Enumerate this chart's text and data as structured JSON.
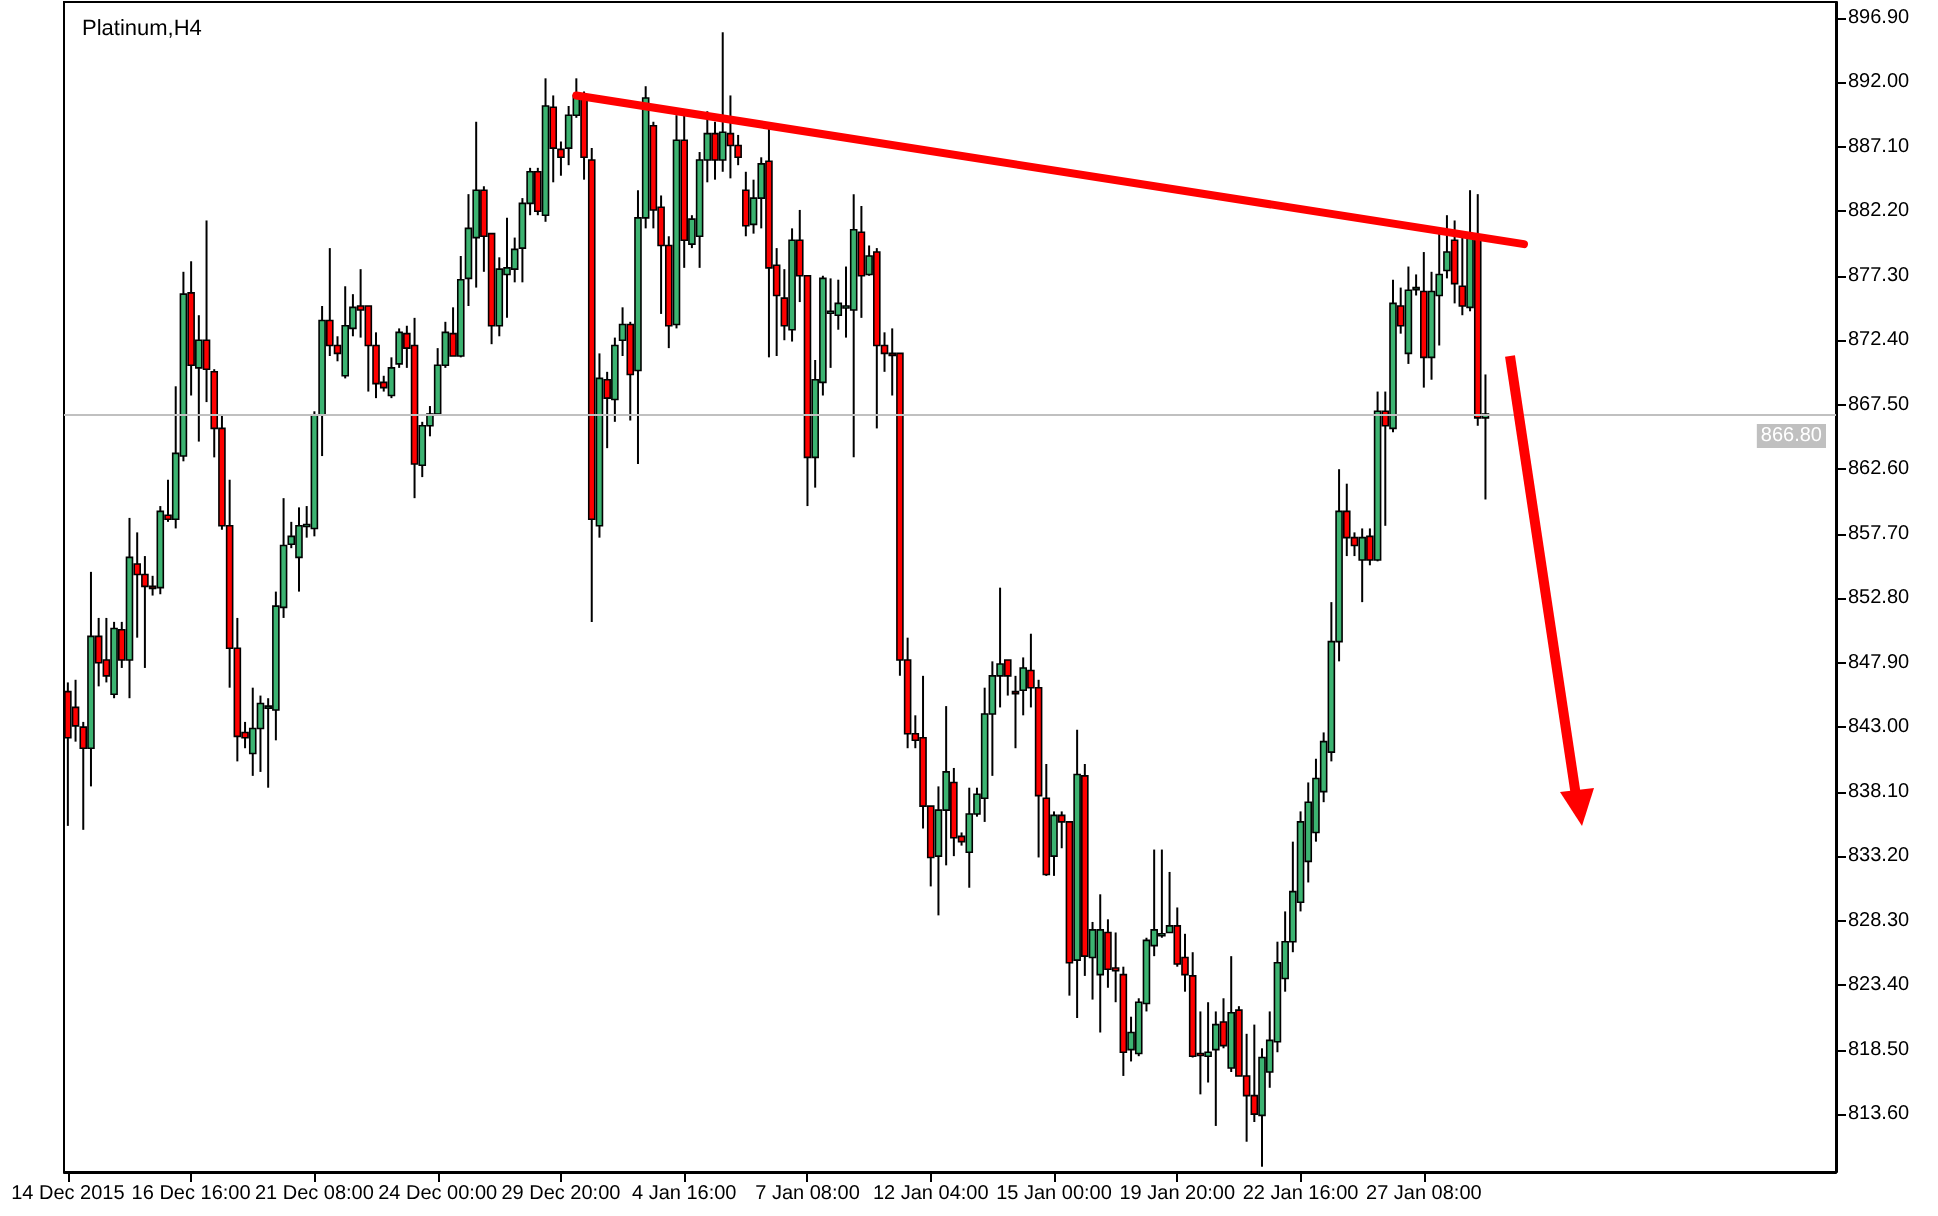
{
  "chart_data": {
    "type": "candlestick",
    "title": "Platinum,H4",
    "categories": [
      "14 Dec 2015",
      null,
      null,
      null,
      null,
      null,
      null,
      null,
      null,
      null,
      null,
      null,
      null,
      null,
      null,
      null,
      "16 Dec 16:00",
      null,
      null,
      null,
      null,
      null,
      null,
      null,
      null,
      null,
      null,
      null,
      null,
      null,
      null,
      null,
      "21 Dec 08:00",
      null,
      null,
      null,
      null,
      null,
      null,
      null,
      null,
      null,
      null,
      null,
      null,
      null,
      null,
      null,
      "24 Dec 00:00",
      null,
      null,
      null,
      null,
      null,
      null,
      null,
      null,
      null,
      null,
      null,
      null,
      null,
      null,
      null,
      "29 Dec 20:00",
      null,
      null,
      null,
      null,
      null,
      null,
      null,
      null,
      null,
      null,
      null,
      null,
      null,
      null,
      null,
      "4 Jan 16:00",
      null,
      null,
      null,
      null,
      null,
      null,
      null,
      null,
      null,
      null,
      null,
      null,
      null,
      null,
      null,
      "7 Jan 08:00",
      null,
      null,
      null,
      null,
      null,
      null,
      null,
      null,
      null,
      null,
      null,
      null,
      null,
      null,
      null,
      "12 Jan 04:00",
      null,
      null,
      null,
      null,
      null,
      null,
      null,
      null,
      null,
      null,
      null,
      null,
      null,
      null,
      null,
      "15 Jan 00:00",
      null,
      null,
      null,
      null,
      null,
      null,
      null,
      null,
      null,
      null,
      null,
      null,
      null,
      null,
      null,
      "19 Jan 20:00",
      null,
      null,
      null,
      null,
      null,
      null,
      null,
      null,
      null,
      null,
      null,
      null,
      null,
      null,
      null,
      "22 Jan 16:00",
      null,
      null,
      null,
      null,
      null,
      null,
      null,
      null,
      null,
      null,
      null,
      null,
      null,
      null,
      null,
      "27 Jan 08:00",
      null,
      null,
      null,
      null,
      null,
      null,
      null,
      null,
      null,
      null,
      null,
      null,
      null,
      null,
      null,
      null,
      null,
      null,
      null,
      null,
      null,
      null,
      null,
      null,
      null,
      null,
      null,
      null,
      null,
      null,
      null,
      null,
      null,
      null,
      null,
      null,
      null,
      null,
      null,
      null,
      null,
      null,
      null,
      null,
      null,
      null,
      null,
      null,
      null,
      null,
      null,
      null,
      null
    ],
    "colors": [
      "#ff0000",
      "#ff0000",
      "#ff0000",
      "#3cb371",
      "#ff0000",
      "#ff0000",
      "#3cb371",
      "#ff0000",
      "#3cb371",
      "#ff0000",
      "#ff0000",
      "#ff0000",
      "#3cb371",
      "#ff0000",
      "#3cb371",
      "#3cb371",
      "#ff0000",
      "#3cb371",
      "#ff0000",
      "#ff0000",
      "#ff0000",
      "#ff0000",
      "#ff0000",
      "#ff0000",
      "#3cb371",
      "#3cb371",
      "#3cb371",
      "#3cb371",
      "#3cb371",
      "#3cb371",
      "#3cb371",
      "#3cb371",
      "#3cb371",
      "#3cb371",
      "#ff0000",
      "#ff0000",
      "#3cb371",
      "#3cb371",
      "#ff0000",
      "#ff0000",
      "#ff0000",
      "#ff0000",
      "#3cb371",
      "#3cb371",
      "#ff0000",
      "#ff0000",
      "#3cb371",
      "#3cb371",
      "#3cb371",
      "#3cb371",
      "#ff0000",
      "#3cb371",
      "#3cb371",
      "#3cb371",
      "#ff0000",
      "#ff0000",
      "#3cb371",
      "#3cb371",
      "#3cb371",
      "#3cb371",
      "#3cb371",
      "#ff0000",
      "#3cb371",
      "#ff0000",
      "#ff0000",
      "#3cb371",
      "#3cb371",
      "#ff0000",
      "#ff0000",
      "#3cb371",
      "#ff0000",
      "#3cb371",
      "#3cb371",
      "#ff0000",
      "#3cb371",
      "#3cb371",
      "#ff0000",
      "#ff0000",
      "#ff0000",
      "#3cb371",
      "#ff0000",
      "#3cb371",
      "#3cb371",
      "#3cb371",
      "#ff0000",
      "#3cb371",
      "#ff0000",
      "#ff0000",
      "#ff0000",
      "#3cb371",
      "#3cb371",
      "#ff0000",
      "#ff0000",
      "#ff0000",
      "#3cb371",
      "#ff0000",
      "#ff0000",
      "#3cb371",
      "#3cb371",
      "#3cb371",
      "#3cb371",
      "#3cb371",
      "#3cb371",
      "#ff0000",
      "#3cb371",
      "#ff0000",
      "#ff0000",
      "#ff0000",
      "#ff0000",
      "#ff0000",
      "#ff0000",
      "#ff0000",
      "#ff0000",
      "#3cb371",
      "#3cb371",
      "#ff0000",
      "#ff0000",
      "#3cb371",
      "#3cb371",
      "#3cb371",
      "#3cb371",
      "#3cb371",
      "#ff0000",
      "#ff0000",
      "#3cb371",
      "#ff0000",
      "#ff0000",
      "#ff0000",
      "#3cb371",
      "#ff0000",
      "#ff0000",
      "#3cb371",
      "#ff0000",
      "#3cb371",
      "#3cb371",
      "#ff0000",
      "#ff0000",
      "#ff0000",
      "#3cb371",
      "#3cb371",
      "#3cb371",
      "#3cb371",
      "#3cb371",
      "#3cb371",
      "#ff0000",
      "#ff0000",
      "#ff0000",
      "#ff0000",
      "#3cb371",
      "#3cb371",
      "#ff0000",
      "#3cb371",
      "#ff0000",
      "#ff0000",
      "#ff0000",
      "#3cb371",
      "#3cb371",
      "#3cb371",
      "#3cb371",
      "#3cb371",
      "#3cb371",
      "#3cb371",
      "#3cb371",
      "#3cb371",
      "#3cb371",
      "#3cb371",
      "#ff0000",
      "#ff0000",
      "#3cb371",
      "#ff0000",
      "#3cb371",
      "#ff0000",
      "#3cb371",
      "#ff0000",
      "#3cb371",
      "#3cb371",
      "#ff0000",
      "#3cb371",
      "#3cb371",
      "#3cb371",
      "#ff0000",
      "#ff0000",
      "#3cb371",
      "#ff0000",
      "#3cb371",
      null,
      null,
      null,
      null,
      null,
      null,
      null,
      null,
      null,
      null,
      null,
      null,
      null,
      null,
      null,
      null,
      null,
      null,
      null,
      null,
      null,
      null,
      null,
      null,
      null,
      null,
      null,
      null,
      null,
      null,
      null,
      null,
      null,
      null,
      null,
      null,
      null,
      null,
      null,
      null,
      null,
      null,
      null,
      null,
      null
    ],
    "ylim": [
      809.2,
      898.1
    ],
    "yticks": [
      {
        "value": 813.6,
        "label": "813.60"
      },
      {
        "value": 818.5,
        "label": "818.50"
      },
      {
        "value": 823.4,
        "label": "823.40"
      },
      {
        "value": 828.3,
        "label": "828.30"
      },
      {
        "value": 833.2,
        "label": "833.20"
      },
      {
        "value": 838.1,
        "label": "838.10"
      },
      {
        "value": 843.0,
        "label": "843.00"
      },
      {
        "value": 847.9,
        "label": "847.90"
      },
      {
        "value": 852.8,
        "label": "852.80"
      },
      {
        "value": 857.7,
        "label": "857.70"
      },
      {
        "value": 862.6,
        "label": "862.60"
      },
      {
        "value": 867.5,
        "label": "867.50"
      },
      {
        "value": 872.4,
        "label": "872.40"
      },
      {
        "value": 877.3,
        "label": "877.30"
      },
      {
        "value": 882.2,
        "label": "882.20"
      },
      {
        "value": 887.1,
        "label": "887.10"
      },
      {
        "value": 892.0,
        "label": "892.00"
      },
      {
        "value": 896.9,
        "label": "896.90"
      }
    ],
    "ref_lines": [
      {
        "axis": "y",
        "value": 866.8,
        "label": "866.80",
        "color": "#c0c0c0"
      }
    ],
    "ohlc": [
      [
        845.7,
        846.4,
        835.5,
        842.2
      ],
      [
        844.5,
        846.6,
        841.9,
        843.1
      ],
      [
        843.0,
        843.4,
        835.2,
        841.4
      ],
      [
        841.4,
        854.8,
        838.5,
        849.9
      ],
      [
        849.9,
        851.3,
        846.1,
        847.9
      ],
      [
        848.1,
        851.3,
        846.4,
        846.9
      ],
      [
        845.5,
        851.0,
        845.2,
        850.5
      ],
      [
        850.4,
        851.0,
        847.5,
        848.1
      ],
      [
        848.1,
        858.9,
        845.2,
        855.9
      ],
      [
        855.4,
        857.8,
        849.8,
        854.6
      ],
      [
        854.6,
        856.0,
        847.5,
        853.7
      ],
      [
        853.7,
        854.5,
        853.0,
        853.6
      ],
      [
        853.6,
        859.8,
        853.1,
        859.4
      ],
      [
        859.1,
        861.8,
        858.6,
        858.8
      ],
      [
        858.8,
        868.9,
        858.1,
        863.8
      ],
      [
        863.6,
        877.6,
        863.2,
        875.9
      ],
      [
        876.0,
        878.4,
        868.2,
        870.5
      ],
      [
        870.3,
        874.3,
        864.7,
        872.4
      ],
      [
        872.4,
        881.5,
        867.7,
        870.2
      ],
      [
        870.0,
        870.2,
        863.5,
        865.7
      ],
      [
        865.7,
        866.7,
        858.0,
        858.3
      ],
      [
        858.3,
        861.8,
        846.0,
        849.0
      ],
      [
        849.0,
        851.3,
        840.4,
        842.3
      ],
      [
        842.6,
        843.4,
        841.4,
        842.2
      ],
      [
        841.0,
        846.0,
        839.3,
        842.9
      ],
      [
        842.9,
        845.4,
        839.6,
        844.8
      ],
      [
        844.5,
        845.2,
        838.4,
        844.6
      ],
      [
        844.3,
        853.3,
        842.0,
        852.2
      ],
      [
        852.1,
        860.4,
        851.3,
        856.8
      ],
      [
        856.9,
        858.6,
        856.6,
        857.5
      ],
      [
        855.9,
        859.7,
        853.3,
        858.3
      ],
      [
        858.3,
        859.8,
        857.4,
        858.4
      ],
      [
        858.1,
        867.0,
        857.5,
        866.7
      ],
      [
        866.7,
        875.0,
        863.6,
        873.9
      ],
      [
        873.9,
        879.4,
        871.2,
        872.0
      ],
      [
        872.0,
        872.7,
        870.8,
        871.4
      ],
      [
        869.7,
        876.5,
        869.5,
        873.5
      ],
      [
        873.3,
        875.9,
        872.7,
        874.9
      ],
      [
        875.0,
        877.8,
        872.6,
        874.7
      ],
      [
        875.0,
        875.0,
        868.5,
        872.0
      ],
      [
        872.0,
        873.0,
        868.0,
        869.1
      ],
      [
        869.2,
        869.7,
        868.5,
        868.8
      ],
      [
        868.2,
        871.1,
        868.0,
        870.3
      ],
      [
        870.6,
        873.3,
        870.3,
        873.0
      ],
      [
        872.9,
        873.5,
        870.3,
        871.8
      ],
      [
        872.0,
        874.1,
        860.4,
        863.0
      ],
      [
        862.9,
        866.2,
        862.0,
        865.9
      ],
      [
        865.9,
        867.4,
        865.1,
        866.8
      ],
      [
        866.8,
        871.8,
        866.7,
        870.5
      ],
      [
        870.5,
        873.8,
        870.3,
        873.0
      ],
      [
        872.9,
        874.9,
        871.2,
        871.2
      ],
      [
        871.2,
        878.8,
        871.1,
        877.0
      ],
      [
        877.1,
        883.5,
        875.0,
        880.9
      ],
      [
        880.2,
        889.0,
        876.4,
        883.8
      ],
      [
        883.8,
        884.1,
        877.6,
        880.3
      ],
      [
        880.5,
        880.5,
        872.1,
        873.5
      ],
      [
        873.5,
        878.7,
        872.7,
        877.8
      ],
      [
        877.4,
        881.7,
        874.1,
        877.9
      ],
      [
        877.8,
        880.2,
        876.8,
        879.3
      ],
      [
        879.4,
        883.2,
        876.8,
        882.8
      ],
      [
        882.8,
        885.5,
        881.9,
        885.2
      ],
      [
        885.2,
        885.5,
        881.9,
        882.2
      ],
      [
        881.9,
        892.3,
        881.4,
        890.2
      ],
      [
        890.1,
        891.0,
        884.4,
        887.0
      ],
      [
        886.9,
        887.5,
        884.9,
        886.3
      ],
      [
        887.0,
        890.2,
        885.7,
        889.5
      ],
      [
        889.5,
        892.3,
        889.3,
        891.0
      ],
      [
        891.0,
        891.3,
        884.6,
        886.3
      ],
      [
        886.1,
        887.0,
        851.0,
        858.8
      ],
      [
        858.3,
        871.4,
        857.4,
        869.5
      ],
      [
        869.4,
        870.0,
        864.2,
        868.0
      ],
      [
        867.9,
        872.6,
        866.2,
        872.0
      ],
      [
        872.4,
        874.9,
        871.2,
        873.6
      ],
      [
        873.6,
        873.8,
        866.3,
        869.8
      ],
      [
        870.1,
        883.8,
        863.0,
        881.7
      ],
      [
        881.7,
        891.7,
        880.9,
        890.8
      ],
      [
        888.7,
        889.0,
        880.9,
        882.3
      ],
      [
        882.5,
        883.4,
        874.4,
        879.6
      ],
      [
        879.6,
        880.3,
        871.8,
        873.5
      ],
      [
        873.6,
        889.5,
        873.3,
        887.6
      ],
      [
        887.6,
        889.5,
        877.9,
        880.0
      ],
      [
        879.7,
        881.9,
        879.4,
        881.6
      ],
      [
        880.3,
        886.7,
        877.9,
        886.1
      ],
      [
        886.1,
        889.8,
        884.4,
        888.1
      ],
      [
        888.1,
        889.0,
        884.6,
        886.1
      ],
      [
        886.1,
        895.8,
        885.2,
        888.2
      ],
      [
        888.1,
        891.0,
        884.7,
        887.2
      ],
      [
        887.2,
        888.0,
        885.7,
        886.3
      ],
      [
        883.8,
        885.2,
        880.3,
        881.1
      ],
      [
        881.2,
        884.6,
        880.5,
        883.2
      ],
      [
        883.2,
        886.3,
        880.9,
        885.8
      ],
      [
        886.0,
        888.5,
        871.1,
        877.9
      ],
      [
        878.1,
        879.4,
        871.2,
        875.8
      ],
      [
        875.6,
        877.8,
        872.4,
        873.5
      ],
      [
        873.2,
        880.9,
        872.3,
        880.0
      ],
      [
        880.0,
        882.3,
        875.3,
        877.3
      ],
      [
        877.3,
        877.3,
        859.8,
        863.5
      ],
      [
        863.5,
        870.9,
        861.2,
        869.4
      ],
      [
        869.2,
        877.3,
        868.2,
        877.1
      ],
      [
        874.5,
        877.1,
        870.3,
        874.6
      ],
      [
        874.3,
        877.0,
        873.2,
        875.2
      ],
      [
        874.9,
        878.0,
        872.6,
        875.0
      ],
      [
        874.7,
        883.5,
        863.5,
        880.8
      ],
      [
        880.6,
        882.6,
        874.1,
        877.3
      ],
      [
        877.4,
        879.6,
        877.3,
        878.8
      ],
      [
        879.1,
        879.4,
        865.7,
        872.0
      ],
      [
        872.0,
        873.0,
        870.0,
        871.4
      ],
      [
        871.4,
        873.3,
        868.2,
        871.3
      ],
      [
        871.4,
        871.4,
        846.9,
        848.1
      ],
      [
        848.1,
        849.8,
        841.4,
        842.5
      ],
      [
        842.5,
        843.9,
        841.4,
        842.0
      ],
      [
        842.2,
        846.9,
        835.3,
        837.0
      ],
      [
        837.0,
        837.0,
        830.9,
        833.1
      ],
      [
        833.2,
        838.5,
        828.7,
        836.7
      ],
      [
        836.7,
        844.6,
        832.5,
        839.6
      ],
      [
        838.8,
        839.9,
        833.2,
        834.6
      ],
      [
        834.7,
        835.0,
        834.0,
        834.3
      ],
      [
        833.5,
        838.4,
        830.8,
        836.4
      ],
      [
        836.4,
        838.4,
        836.2,
        837.9
      ],
      [
        837.6,
        846.0,
        835.8,
        844.0
      ],
      [
        844.0,
        848.0,
        839.3,
        846.9
      ],
      [
        846.9,
        853.6,
        844.5,
        847.8
      ],
      [
        848.1,
        848.1,
        845.4,
        846.9
      ],
      [
        845.7,
        846.9,
        841.4,
        845.6
      ],
      [
        845.8,
        848.3,
        843.9,
        847.5
      ],
      [
        847.3,
        850.1,
        844.5,
        846.0
      ],
      [
        846.0,
        846.6,
        833.1,
        837.8
      ],
      [
        837.6,
        840.2,
        831.7,
        831.8
      ],
      [
        833.2,
        836.6,
        831.7,
        836.3
      ],
      [
        836.3,
        836.6,
        833.8,
        835.8
      ],
      [
        835.8,
        835.8,
        822.6,
        825.1
      ],
      [
        825.3,
        842.8,
        820.9,
        839.4
      ],
      [
        839.3,
        840.2,
        824.1,
        825.6
      ],
      [
        825.5,
        828.2,
        822.3,
        827.6
      ],
      [
        824.2,
        830.3,
        819.8,
        827.6
      ],
      [
        827.4,
        828.4,
        823.2,
        824.6
      ],
      [
        824.7,
        827.4,
        822.1,
        824.5
      ],
      [
        824.2,
        824.8,
        816.5,
        818.3
      ],
      [
        818.5,
        821.0,
        817.6,
        819.8
      ],
      [
        818.2,
        822.4,
        818.0,
        822.1
      ],
      [
        822.0,
        827.0,
        821.4,
        826.8
      ],
      [
        826.4,
        833.7,
        825.6,
        827.6
      ],
      [
        827.2,
        833.7,
        827.0,
        827.3
      ],
      [
        827.4,
        832.0,
        827.4,
        827.9
      ],
      [
        827.9,
        829.3,
        824.8,
        825.0
      ],
      [
        825.5,
        827.3,
        822.9,
        824.2
      ],
      [
        824.1,
        825.9,
        817.9,
        818.0
      ],
      [
        818.2,
        821.4,
        815.1,
        818.1
      ],
      [
        818.0,
        822.1,
        816.0,
        818.3
      ],
      [
        818.5,
        821.4,
        812.7,
        820.4
      ],
      [
        820.6,
        822.4,
        818.6,
        818.8
      ],
      [
        817.1,
        825.6,
        816.8,
        821.3
      ],
      [
        821.5,
        821.8,
        816.5,
        816.5
      ],
      [
        816.5,
        819.7,
        811.5,
        815.0
      ],
      [
        815.0,
        820.4,
        813.0,
        813.6
      ],
      [
        813.5,
        818.6,
        809.6,
        817.9
      ],
      [
        816.8,
        821.4,
        815.6,
        819.2
      ],
      [
        819.1,
        826.7,
        818.3,
        825.1
      ],
      [
        823.9,
        829.0,
        822.9,
        826.7
      ],
      [
        826.7,
        834.3,
        825.9,
        830.5
      ],
      [
        829.7,
        836.6,
        829.0,
        835.8
      ],
      [
        832.8,
        838.8,
        831.2,
        837.3
      ],
      [
        835.0,
        840.6,
        834.3,
        839.1
      ],
      [
        838.1,
        842.6,
        837.3,
        841.9
      ],
      [
        841.1,
        852.5,
        840.4,
        849.5
      ],
      [
        849.5,
        862.6,
        848.0,
        859.4
      ],
      [
        859.4,
        861.5,
        856.0,
        857.4
      ],
      [
        857.4,
        857.8,
        856.0,
        856.8
      ],
      [
        855.7,
        858.1,
        852.5,
        857.4
      ],
      [
        857.5,
        858.1,
        855.3,
        855.7
      ],
      [
        855.7,
        868.5,
        855.6,
        867.0
      ],
      [
        867.0,
        868.5,
        858.3,
        865.9
      ],
      [
        865.7,
        877.0,
        865.4,
        875.2
      ],
      [
        875.0,
        876.4,
        872.9,
        873.5
      ],
      [
        871.4,
        878.0,
        870.6,
        876.2
      ],
      [
        876.3,
        877.4,
        875.8,
        876.4
      ],
      [
        876.1,
        879.1,
        868.8,
        871.1
      ],
      [
        871.1,
        877.6,
        869.4,
        876.1
      ],
      [
        875.8,
        880.9,
        872.0,
        877.4
      ],
      [
        877.7,
        881.9,
        877.1,
        879.1
      ],
      [
        880.0,
        881.5,
        875.2,
        876.7
      ],
      [
        876.5,
        880.5,
        874.3,
        875.0
      ],
      [
        874.9,
        883.8,
        874.6,
        880.3
      ],
      [
        880.3,
        883.5,
        865.9,
        866.5
      ],
      [
        866.5,
        869.8,
        860.3,
        866.8
      ],
      null,
      null,
      null,
      null,
      null,
      null,
      null,
      null,
      null,
      null,
      null,
      null,
      null,
      null,
      null,
      null,
      null,
      null,
      null,
      null,
      null,
      null,
      null,
      null,
      null,
      null,
      null,
      null,
      null,
      null,
      null,
      null,
      null,
      null,
      null,
      null,
      null,
      null,
      null,
      null,
      null,
      null,
      null,
      null,
      null
    ],
    "series": [
      {
        "type": "line",
        "color": "#ff0000",
        "values": [
          null,
          null,
          null,
          null,
          null,
          null,
          null,
          null,
          null,
          null,
          null,
          null,
          null,
          null,
          null,
          null,
          null,
          null,
          null,
          null,
          null,
          null,
          null,
          null,
          null,
          null,
          null,
          null,
          null,
          null,
          null,
          null,
          null,
          null,
          null,
          null,
          null,
          null,
          null,
          null,
          null,
          null,
          null,
          null,
          null,
          null,
          null,
          null,
          null,
          null,
          null,
          null,
          null,
          null,
          null,
          null,
          null,
          null,
          null,
          null,
          null,
          null,
          null,
          null,
          null,
          null,
          891.0,
          null,
          null,
          null,
          null,
          null,
          null,
          null,
          null,
          null,
          null,
          null,
          null,
          null,
          null,
          null,
          null,
          null,
          null,
          null,
          null,
          null,
          null,
          null,
          null,
          null,
          null,
          null,
          null,
          null,
          null,
          null,
          null,
          null,
          null,
          null,
          null,
          null,
          null,
          null,
          null,
          null,
          null,
          null,
          null,
          null,
          null,
          null,
          null,
          null,
          null,
          null,
          null,
          null,
          null,
          null,
          null,
          null,
          null,
          null,
          null,
          null,
          null,
          null,
          null,
          null,
          null,
          null,
          null,
          null,
          null,
          null,
          null,
          null,
          null,
          null,
          null,
          null,
          null,
          null,
          null,
          null,
          null,
          null,
          null,
          null,
          null,
          null,
          null,
          null,
          null,
          null,
          null,
          null,
          null,
          null,
          null,
          null,
          null,
          null,
          null,
          null,
          null,
          null,
          null,
          null,
          null,
          null,
          null,
          null,
          null,
          null,
          null,
          null,
          null,
          null,
          null,
          null,
          null,
          null,
          null,
          null,
          null,
          879.7,
          null,
          null,
          null,
          null,
          null,
          null,
          null,
          null,
          null,
          null,
          null,
          null,
          null,
          null,
          null,
          null,
          null,
          null,
          null,
          null,
          null,
          null,
          null,
          null,
          null,
          null,
          null,
          null,
          null,
          null,
          null,
          null,
          null,
          null,
          null,
          null,
          null,
          null,
          null,
          null
        ]
      }
    ]
  }
}
